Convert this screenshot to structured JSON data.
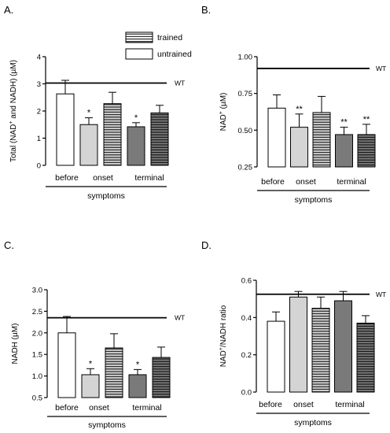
{
  "chart_data": [
    {
      "panel": "A.",
      "type": "bar",
      "categories": [
        "before",
        "onset",
        "",
        "terminal",
        ""
      ],
      "group_label": "symptoms",
      "ylabel_parts": [
        "Total (NAD",
        "+",
        " and NADH) (µM)"
      ],
      "ylim": [
        0,
        4
      ],
      "yticks": [
        "0",
        "1",
        "2",
        "3",
        "4"
      ],
      "values": [
        2.63,
        1.5,
        2.27,
        1.42,
        1.93
      ],
      "errors": [
        0.5,
        0.25,
        0.42,
        0.15,
        0.28
      ],
      "fills": [
        "white",
        "light",
        "light-striped",
        "dark",
        "dark-striped"
      ],
      "significance": [
        "",
        "*",
        "",
        "*",
        ""
      ],
      "reference_line": {
        "value": 3.03,
        "label": "WT"
      },
      "legend": [
        {
          "label": "trained",
          "fill": "striped"
        },
        {
          "label": "untrained",
          "fill": "white"
        }
      ]
    },
    {
      "panel": "B.",
      "type": "bar",
      "categories": [
        "before",
        "onset",
        "",
        "terminal",
        ""
      ],
      "group_label": "symptoms",
      "ylabel_parts": [
        "NAD",
        "+",
        " (µM)"
      ],
      "ylim": [
        0.25,
        1.0
      ],
      "yticks": [
        "0.25",
        "0.50",
        "0.75",
        "1.00"
      ],
      "values": [
        0.65,
        0.52,
        0.62,
        0.47,
        0.47
      ],
      "errors": [
        0.09,
        0.09,
        0.11,
        0.05,
        0.07
      ],
      "fills": [
        "white",
        "light",
        "light-striped",
        "dark",
        "dark-striped"
      ],
      "significance": [
        "",
        "**",
        "",
        "**",
        "**"
      ],
      "reference_line": {
        "value": 0.92,
        "label": "WT"
      }
    },
    {
      "panel": "C.",
      "type": "bar",
      "categories": [
        "before",
        "onset",
        "",
        "terminal",
        ""
      ],
      "group_label": "symptoms",
      "ylabel_parts": [
        "NADH (µM)"
      ],
      "ylim": [
        0.5,
        3.0
      ],
      "yticks": [
        "0.5",
        "1.0",
        "1.5",
        "2.0",
        "2.5",
        "3.0"
      ],
      "values": [
        2.0,
        1.03,
        1.65,
        1.03,
        1.43
      ],
      "errors": [
        0.38,
        0.14,
        0.33,
        0.12,
        0.24
      ],
      "fills": [
        "white",
        "light",
        "light-striped",
        "dark",
        "dark-striped"
      ],
      "significance": [
        "",
        "*",
        "",
        "*",
        ""
      ],
      "reference_line": {
        "value": 2.35,
        "label": "WT"
      }
    },
    {
      "panel": "D.",
      "type": "bar",
      "categories": [
        "before",
        "onset",
        "",
        "terminal",
        ""
      ],
      "group_label": "symptoms",
      "ylabel_parts": [
        "NAD",
        "+",
        "/NADH ratio"
      ],
      "ylim": [
        0,
        0.6
      ],
      "yticks": [
        "0.0",
        "0.2",
        "0.4",
        "0.6"
      ],
      "values": [
        0.38,
        0.51,
        0.45,
        0.49,
        0.37
      ],
      "errors": [
        0.05,
        0.03,
        0.06,
        0.05,
        0.04
      ],
      "fills": [
        "white",
        "light",
        "light-striped",
        "dark",
        "dark-striped"
      ],
      "significance": [
        "",
        "",
        "",
        "",
        ""
      ],
      "reference_line": {
        "value": 0.525,
        "label": "WT"
      }
    }
  ],
  "colors": {
    "white": "#ffffff",
    "light": "#d4d4d4",
    "dark": "#7a7a7a",
    "stripe": "#000000",
    "axis": "#000000"
  }
}
